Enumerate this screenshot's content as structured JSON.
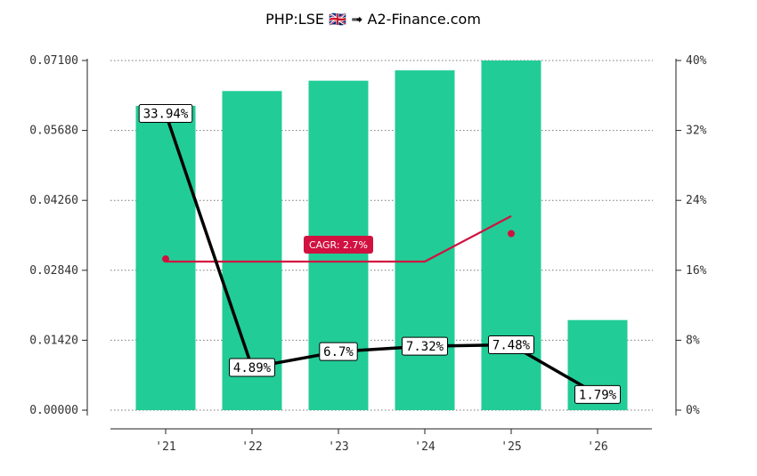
{
  "chart_data": {
    "type": "bar",
    "title": "PHP:LSE 🇬🇧 ➟ A2-Finance.com",
    "categories": [
      "'21",
      "'22",
      "'23",
      "'24",
      "'25",
      "'26"
    ],
    "series": [
      {
        "values": [
          0.0618,
          0.0648,
          0.0669,
          0.069,
          0.071,
          0.0183
        ]
      },
      {
        "values": [
          33.94,
          4.89,
          6.7,
          7.32,
          7.48,
          1.79
        ],
        "labels": [
          "33.94%",
          "4.89%",
          "6.7%",
          "7.32%",
          "7.48%",
          "1.79%"
        ]
      }
    ],
    "cagr": {
      "label": "CAGR: 2.7%",
      "line_percent": [
        17,
        17,
        17,
        17,
        22.2
      ],
      "markers_percent": [
        17.3,
        20.2
      ]
    },
    "left_axis": {
      "ylim": [
        0,
        0.071
      ],
      "ticks": [
        "0.00000",
        "0.01420",
        "0.02840",
        "0.04260",
        "0.05680",
        "0.07100"
      ]
    },
    "right_axis": {
      "ylim": [
        0,
        40
      ],
      "ticks": [
        "0%",
        "8%",
        "16%",
        "24%",
        "32%",
        "40%"
      ]
    },
    "grid": true,
    "colors": {
      "bars": "#22cc96",
      "yield_line": "#000000",
      "cagr": "#d11140"
    }
  }
}
